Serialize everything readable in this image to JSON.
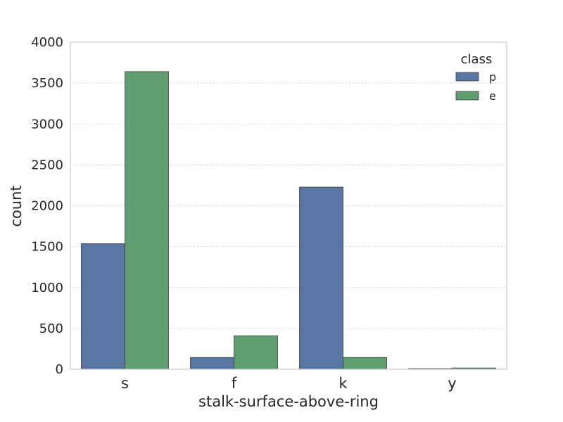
{
  "chart_data": {
    "type": "bar",
    "title": "",
    "xlabel": "stalk-surface-above-ring",
    "ylabel": "count",
    "categories": [
      "s",
      "f",
      "k",
      "y"
    ],
    "series": [
      {
        "name": "p",
        "color": "#5875a4",
        "values": [
          1536,
          144,
          2228,
          8
        ]
      },
      {
        "name": "e",
        "color": "#5f9e6e",
        "values": [
          3640,
          408,
          144,
          16
        ]
      }
    ],
    "ylim": [
      0,
      4000
    ],
    "yticks": [
      0,
      500,
      1000,
      1500,
      2000,
      2500,
      3000,
      3500,
      4000
    ],
    "grid": "horizontal dotted",
    "legend": {
      "title": "class",
      "placement": "top-right"
    }
  }
}
